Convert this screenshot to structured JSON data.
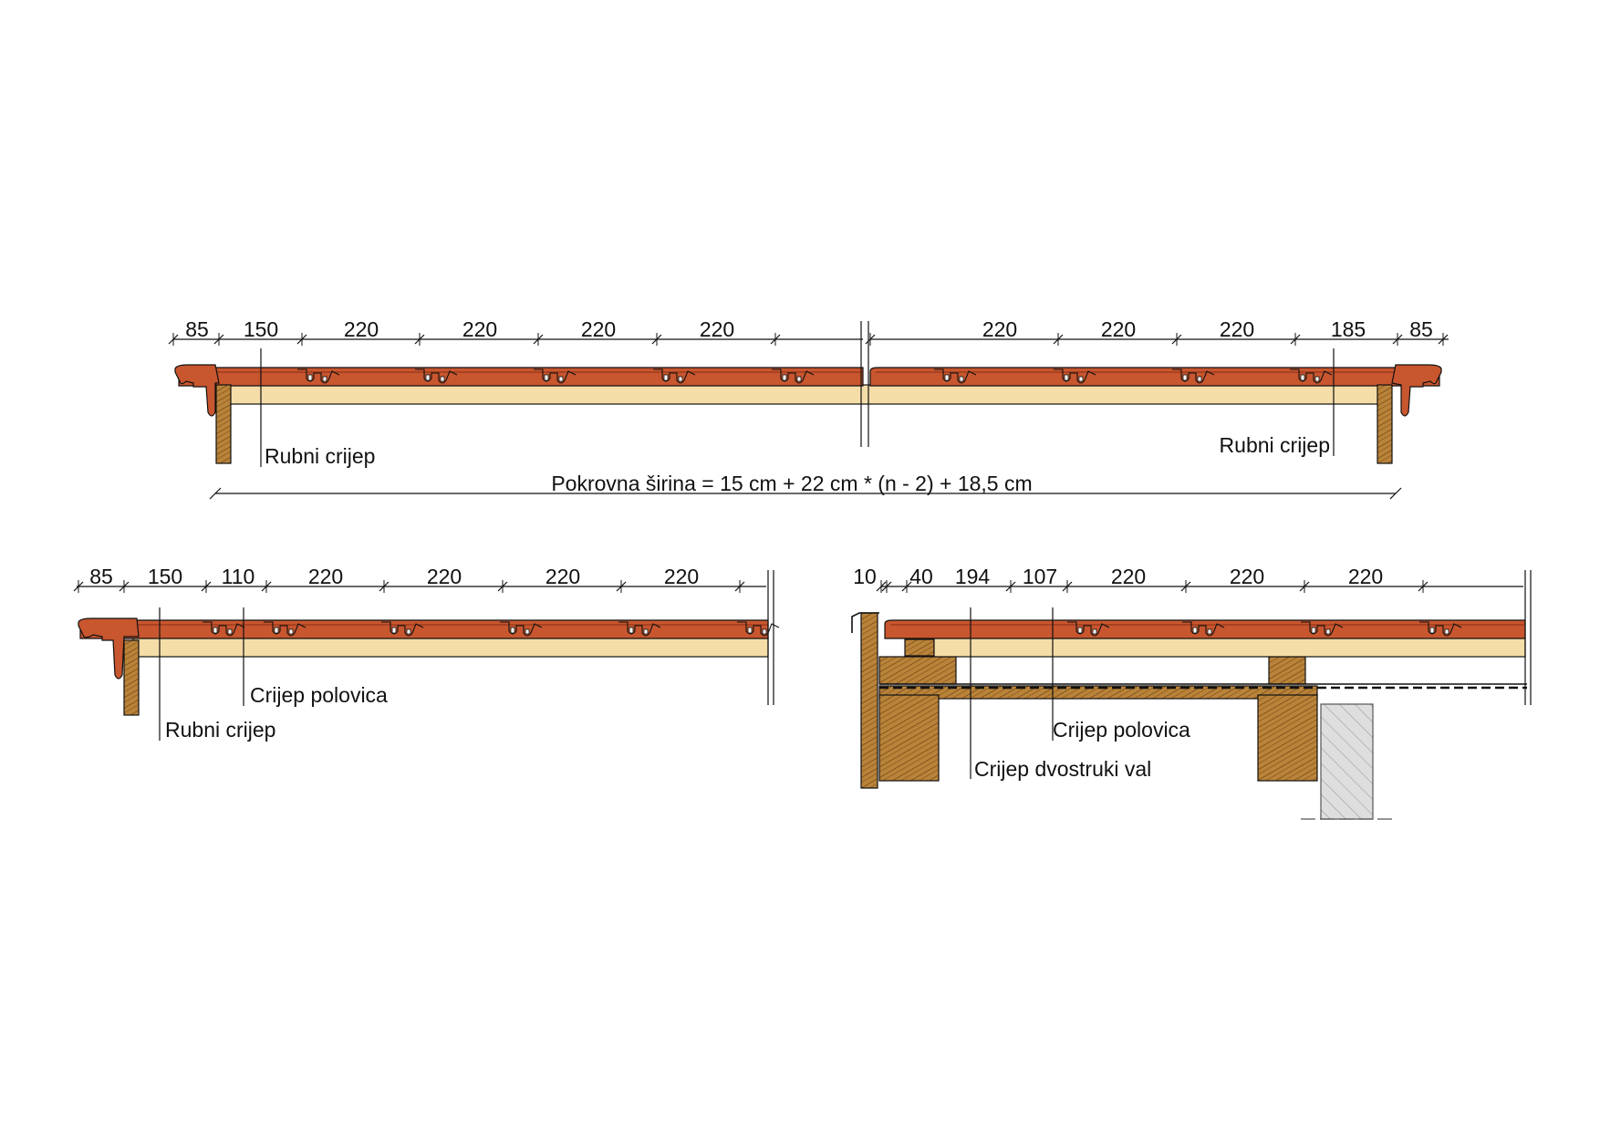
{
  "colors": {
    "tile": "#c8562e",
    "tile_dark": "#8a2f14",
    "batten": "#f5dda8",
    "timber": "#b07a2c",
    "timber_dark": "#6b4413",
    "masonry": "#d8d8d8",
    "line": "#111111"
  },
  "top_section": {
    "dims_left": [
      "85",
      "150",
      "220",
      "220",
      "220",
      "220"
    ],
    "dims_right": [
      "220",
      "220",
      "220",
      "185",
      "85"
    ],
    "label_left": "Rubni crijep",
    "label_right": "Rubni crijep",
    "formula": "Pokrovna širina = 15 cm + 22 cm * (n - 2) + 18,5 cm"
  },
  "bottom_left_section": {
    "dims": [
      "85",
      "150",
      "110",
      "220",
      "220",
      "220",
      "220"
    ],
    "label_half": "Crijep polovica",
    "label_edge": "Rubni crijep"
  },
  "bottom_right_section": {
    "dims": [
      "10",
      "40",
      "194",
      "107",
      "220",
      "220",
      "220"
    ],
    "label_half": "Crijep polovica",
    "label_double": "Crijep dvostruki val"
  }
}
